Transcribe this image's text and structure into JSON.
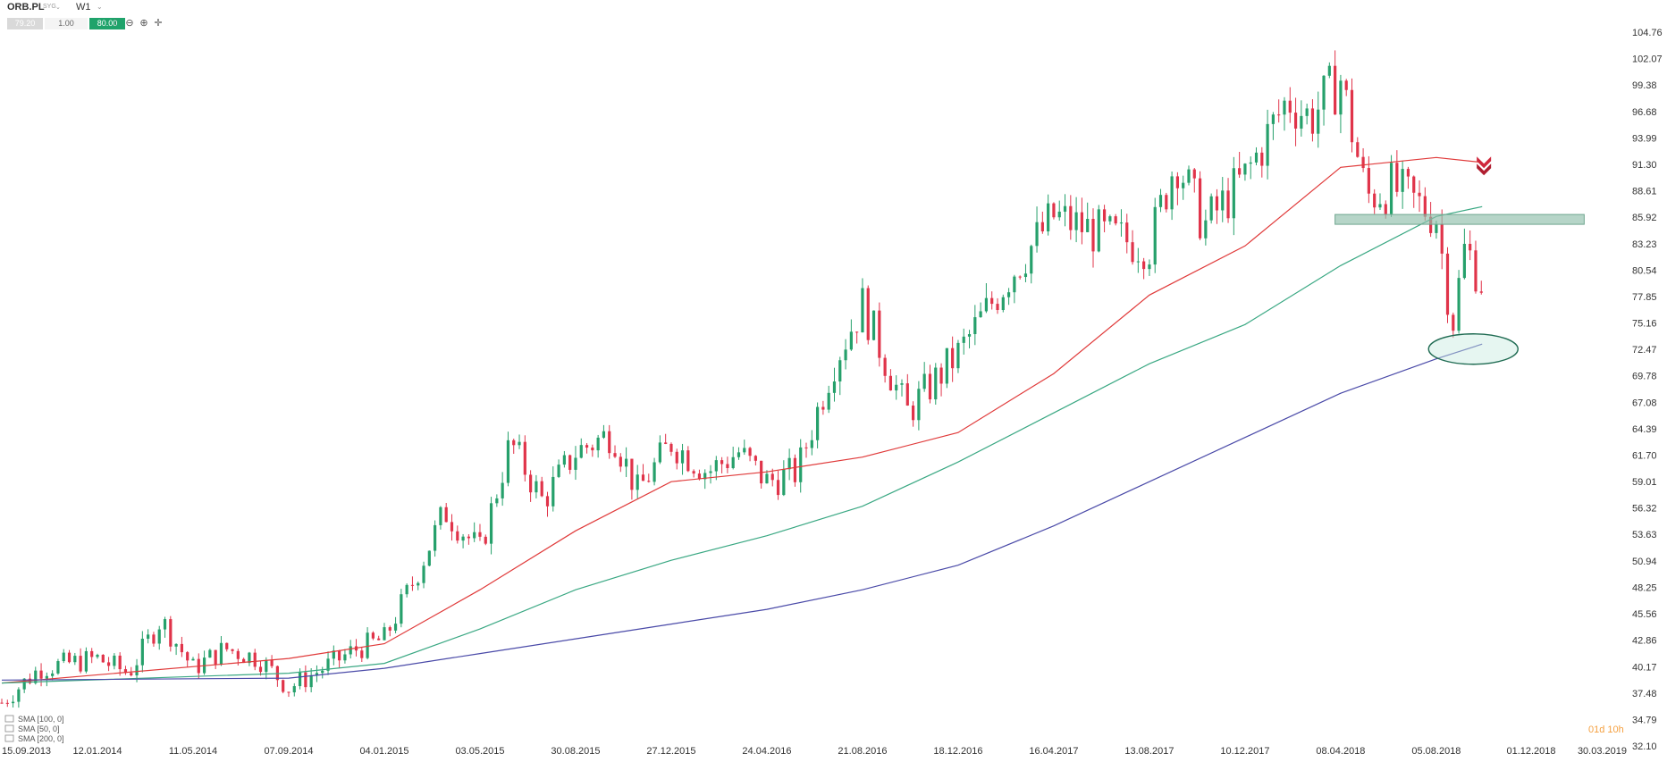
{
  "toolbar": {
    "symbol": "ORB.PL",
    "symbol_sub": "SYG",
    "timeframe": "W1",
    "bid": "79.20",
    "quantity": "1.00",
    "ask": "80.00",
    "icons": [
      "chart-type-icon",
      "zoom-out-icon",
      "zoom-in-icon",
      "crosshair-icon"
    ]
  },
  "legend": [
    "SMA [100, 0]",
    "SMA [50, 0]",
    "SMA [200, 0]"
  ],
  "countdown": "01d 10h",
  "colors": {
    "up": "#26a06b",
    "down": "#e0344a",
    "sma50": "#e03a3a",
    "sma100": "#3aa883",
    "sma200": "#4a4aa8",
    "zone": "#8fbfaa",
    "ask": "#1fa36b"
  },
  "chart_data": {
    "type": "candlestick",
    "y_ticks": [
      "104.76",
      "102.07",
      "99.38",
      "96.68",
      "93.99",
      "91.30",
      "88.61",
      "85.92",
      "83.23",
      "80.54",
      "77.85",
      "75.16",
      "72.47",
      "69.78",
      "67.08",
      "64.39",
      "61.70",
      "59.01",
      "56.32",
      "53.63",
      "50.94",
      "48.25",
      "45.56",
      "42.86",
      "40.17",
      "37.48",
      "34.79",
      "32.10"
    ],
    "x_ticks": [
      "15.09.2013",
      "12.01.2014",
      "11.05.2014",
      "07.09.2014",
      "04.01.2015",
      "03.05.2015",
      "30.08.2015",
      "27.12.2015",
      "24.04.2016",
      "21.08.2016",
      "18.12.2016",
      "16.04.2017",
      "13.08.2017",
      "10.12.2017",
      "08.04.2018",
      "05.08.2018",
      "01.12.2018",
      "30.03.2019"
    ],
    "ylim": [
      32.1,
      104.76
    ],
    "close_path": [
      [
        "15.09.2013",
        36.5
      ],
      [
        "01.11.2013",
        40
      ],
      [
        "12.01.2014",
        41
      ],
      [
        "20.02.2014",
        39.5
      ],
      [
        "01.04.2014",
        45
      ],
      [
        "11.05.2014",
        40
      ],
      [
        "20.06.2014",
        42
      ],
      [
        "01.08.2014",
        41
      ],
      [
        "07.09.2014",
        38
      ],
      [
        "20.10.2014",
        40
      ],
      [
        "01.12.2014",
        42
      ],
      [
        "04.01.2015",
        43
      ],
      [
        "10.02.2015",
        49
      ],
      [
        "20.03.2015",
        56
      ],
      [
        "03.05.2015",
        52
      ],
      [
        "10.06.2015",
        63
      ],
      [
        "20.07.2015",
        57
      ],
      [
        "30.08.2015",
        62
      ],
      [
        "15.10.2015",
        64
      ],
      [
        "15.11.2015",
        58
      ],
      [
        "27.12.2015",
        63
      ],
      [
        "10.02.2016",
        60
      ],
      [
        "20.03.2016",
        62
      ],
      [
        "24.04.2016",
        59
      ],
      [
        "01.06.2016",
        60
      ],
      [
        "15.07.2016",
        71
      ],
      [
        "21.08.2016",
        77
      ],
      [
        "15.10.2016",
        66
      ],
      [
        "18.12.2016",
        72
      ],
      [
        "20.02.2017",
        80
      ],
      [
        "16.04.2017",
        86
      ],
      [
        "20.06.2017",
        84
      ],
      [
        "13.08.2017",
        83
      ],
      [
        "15.09.2017",
        92
      ],
      [
        "20.10.2017",
        85
      ],
      [
        "10.12.2017",
        90
      ],
      [
        "01.02.2018",
        98
      ],
      [
        "01.03.2018",
        96
      ],
      [
        "08.04.2018",
        100
      ],
      [
        "10.05.2018",
        88
      ],
      [
        "10.06.2018",
        89
      ],
      [
        "05.08.2018",
        86
      ],
      [
        "25.08.2018",
        75
      ],
      [
        "10.09.2018",
        83
      ],
      [
        "01.10.2018",
        79.2
      ]
    ],
    "series": [
      {
        "name": "SMA [50, 0]",
        "points": [
          [
            "15.09.2013",
            38.5
          ],
          [
            "07.09.2014",
            41
          ],
          [
            "04.01.2015",
            42.5
          ],
          [
            "03.05.2015",
            48
          ],
          [
            "30.08.2015",
            54
          ],
          [
            "27.12.2015",
            59
          ],
          [
            "24.04.2016",
            60
          ],
          [
            "21.08.2016",
            61.5
          ],
          [
            "18.12.2016",
            64
          ],
          [
            "16.04.2017",
            70
          ],
          [
            "13.08.2017",
            78
          ],
          [
            "10.12.2017",
            83
          ],
          [
            "08.04.2018",
            91
          ],
          [
            "05.08.2018",
            92
          ],
          [
            "01.10.2018",
            91.5
          ]
        ]
      },
      {
        "name": "SMA [100, 0]",
        "points": [
          [
            "15.09.2013",
            38.5
          ],
          [
            "07.09.2014",
            39.5
          ],
          [
            "04.01.2015",
            40.5
          ],
          [
            "03.05.2015",
            44
          ],
          [
            "30.08.2015",
            48
          ],
          [
            "27.12.2015",
            51
          ],
          [
            "24.04.2016",
            53.5
          ],
          [
            "21.08.2016",
            56.5
          ],
          [
            "18.12.2016",
            61
          ],
          [
            "16.04.2017",
            66
          ],
          [
            "13.08.2017",
            71
          ],
          [
            "10.12.2017",
            75
          ],
          [
            "08.04.2018",
            81
          ],
          [
            "05.08.2018",
            86
          ],
          [
            "01.10.2018",
            87
          ]
        ]
      },
      {
        "name": "SMA [200, 0]",
        "points": [
          [
            "15.09.2013",
            38.8
          ],
          [
            "07.09.2014",
            39
          ],
          [
            "04.01.2015",
            40
          ],
          [
            "03.05.2015",
            41.5
          ],
          [
            "30.08.2015",
            43
          ],
          [
            "27.12.2015",
            44.5
          ],
          [
            "24.04.2016",
            46
          ],
          [
            "21.08.2016",
            48
          ],
          [
            "18.12.2016",
            50.5
          ],
          [
            "16.04.2017",
            54.5
          ],
          [
            "13.08.2017",
            59
          ],
          [
            "10.12.2017",
            63.5
          ],
          [
            "08.04.2018",
            68
          ],
          [
            "05.08.2018",
            71.5
          ],
          [
            "01.10.2018",
            73
          ]
        ]
      }
    ],
    "annotations": {
      "zone": [
        85.2,
        86.2
      ],
      "ellipse_center": [
        "20.09.2018",
        72.5
      ],
      "sell_arrow": [
        "01.10.2018",
        91
      ]
    }
  }
}
